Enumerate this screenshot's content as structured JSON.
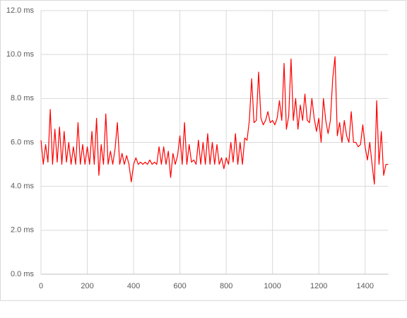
{
  "chart_data": {
    "type": "line",
    "color": "#ff0000",
    "grid": true,
    "xlim": [
      0,
      1500
    ],
    "xticks": [
      0,
      200,
      400,
      600,
      800,
      1000,
      1200,
      1400
    ],
    "ylim": [
      0,
      12
    ],
    "yticks": [
      {
        "value": 0,
        "label": "0.0 ms"
      },
      {
        "value": 2,
        "label": "2.0 ms"
      },
      {
        "value": 4,
        "label": "4.0 ms"
      },
      {
        "value": 6,
        "label": "6.0 ms"
      },
      {
        "value": 8,
        "label": "8.0 ms"
      },
      {
        "value": 10,
        "label": "10.0 ms"
      },
      {
        "value": 12,
        "label": "12.0 ms"
      }
    ],
    "x": [
      0,
      10,
      20,
      30,
      40,
      50,
      60,
      70,
      80,
      90,
      100,
      110,
      120,
      130,
      140,
      150,
      160,
      170,
      180,
      190,
      200,
      210,
      220,
      230,
      240,
      250,
      260,
      270,
      280,
      290,
      300,
      310,
      320,
      330,
      340,
      350,
      360,
      370,
      380,
      390,
      400,
      410,
      420,
      430,
      440,
      450,
      460,
      470,
      480,
      490,
      500,
      510,
      520,
      530,
      540,
      550,
      560,
      570,
      580,
      590,
      600,
      610,
      620,
      630,
      640,
      650,
      660,
      670,
      680,
      690,
      700,
      710,
      720,
      730,
      740,
      750,
      760,
      770,
      780,
      790,
      800,
      810,
      820,
      830,
      840,
      850,
      860,
      870,
      880,
      890,
      900,
      910,
      920,
      930,
      940,
      950,
      960,
      970,
      980,
      990,
      1000,
      1010,
      1020,
      1030,
      1040,
      1050,
      1060,
      1070,
      1080,
      1090,
      1100,
      1110,
      1120,
      1130,
      1140,
      1150,
      1160,
      1170,
      1180,
      1190,
      1200,
      1210,
      1220,
      1230,
      1240,
      1250,
      1260,
      1270,
      1280,
      1290,
      1300,
      1310,
      1320,
      1330,
      1340,
      1350,
      1360,
      1370,
      1380,
      1390,
      1400,
      1410,
      1420,
      1430,
      1440,
      1450,
      1460,
      1470,
      1480,
      1490,
      1500
    ],
    "values": [
      6.1,
      5.0,
      5.9,
      5.1,
      7.5,
      5.0,
      6.6,
      5.1,
      6.7,
      5.0,
      6.5,
      5.1,
      6.0,
      5.0,
      5.8,
      5.0,
      6.9,
      5.0,
      5.9,
      5.0,
      5.8,
      5.0,
      6.5,
      5.0,
      7.1,
      4.5,
      5.9,
      5.0,
      7.3,
      5.0,
      5.6,
      5.0,
      5.7,
      6.9,
      5.0,
      5.5,
      5.0,
      5.4,
      5.0,
      4.2,
      5.0,
      5.3,
      5.0,
      5.1,
      5.0,
      5.1,
      5.0,
      5.2,
      5.0,
      5.1,
      5.0,
      5.8,
      5.0,
      5.8,
      5.0,
      5.6,
      4.4,
      5.5,
      5.0,
      5.4,
      6.3,
      5.0,
      6.9,
      5.0,
      5.9,
      5.1,
      5.2,
      5.0,
      6.1,
      5.0,
      6.0,
      5.0,
      6.4,
      5.0,
      6.0,
      5.0,
      5.9,
      5.0,
      5.3,
      4.8,
      5.3,
      5.0,
      6.0,
      5.1,
      6.4,
      5.0,
      6.0,
      5.0,
      6.2,
      6.1,
      7.0,
      8.9,
      6.9,
      7.0,
      9.2,
      7.1,
      6.8,
      7.0,
      7.4,
      6.9,
      7.0,
      6.8,
      7.1,
      7.9,
      7.0,
      9.6,
      6.6,
      7.2,
      9.8,
      7.0,
      8.0,
      6.6,
      7.7,
      7.0,
      8.2,
      7.0,
      6.9,
      8.0,
      7.1,
      6.5,
      7.1,
      6.0,
      8.0,
      7.0,
      6.4,
      7.0,
      8.9,
      9.9,
      6.3,
      6.9,
      6.0,
      7.0,
      6.3,
      6.0,
      7.4,
      6.0,
      6.0,
      5.8,
      5.9,
      6.8,
      5.8,
      5.2,
      6.0,
      5.0,
      4.1,
      7.9,
      5.0,
      6.5,
      4.5,
      5.0,
      5.0
    ]
  }
}
